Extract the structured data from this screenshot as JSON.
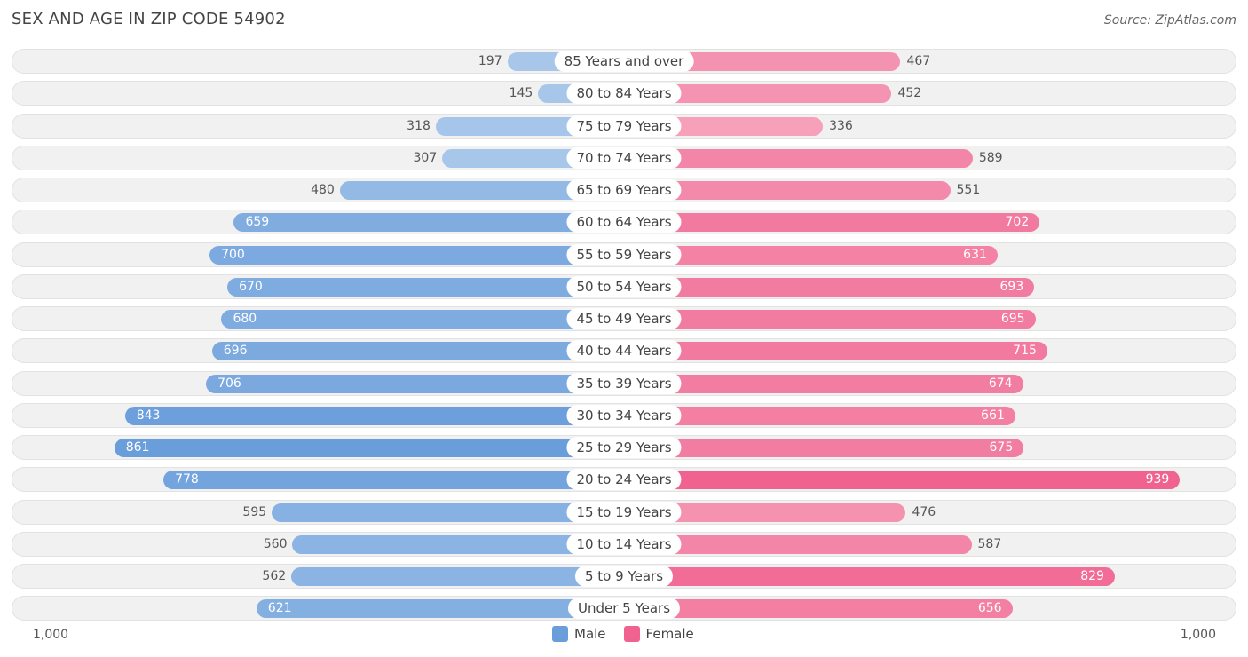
{
  "chart_data": {
    "type": "bar",
    "orientation": "horizontal-diverging",
    "title": "SEX AND AGE IN ZIP CODE 54902",
    "source": "Source: ZipAtlas.com",
    "categories": [
      "85 Years and over",
      "80 to 84 Years",
      "75 to 79 Years",
      "70 to 74 Years",
      "65 to 69 Years",
      "60 to 64 Years",
      "55 to 59 Years",
      "50 to 54 Years",
      "45 to 49 Years",
      "40 to 44 Years",
      "35 to 39 Years",
      "30 to 34 Years",
      "25 to 29 Years",
      "20 to 24 Years",
      "15 to 19 Years",
      "10 to 14 Years",
      "5 to 9 Years",
      "Under 5 Years"
    ],
    "series": [
      {
        "name": "Male",
        "values": [
          197,
          145,
          318,
          307,
          480,
          659,
          700,
          670,
          680,
          696,
          706,
          843,
          861,
          778,
          595,
          560,
          562,
          621
        ]
      },
      {
        "name": "Female",
        "values": [
          467,
          452,
          336,
          589,
          551,
          702,
          631,
          693,
          695,
          715,
          674,
          661,
          675,
          939,
          476,
          587,
          829,
          656
        ]
      }
    ],
    "axis_min_label": "1,000",
    "axis_max_label": "1,000",
    "xlim": [
      -1000,
      1000
    ],
    "legend_position": "bottom-center",
    "colors": {
      "male_light": "#a7c6ea",
      "male_dark": "#6a9edb",
      "female_light": "#f6a4bd",
      "female_dark": "#f0628f"
    }
  }
}
